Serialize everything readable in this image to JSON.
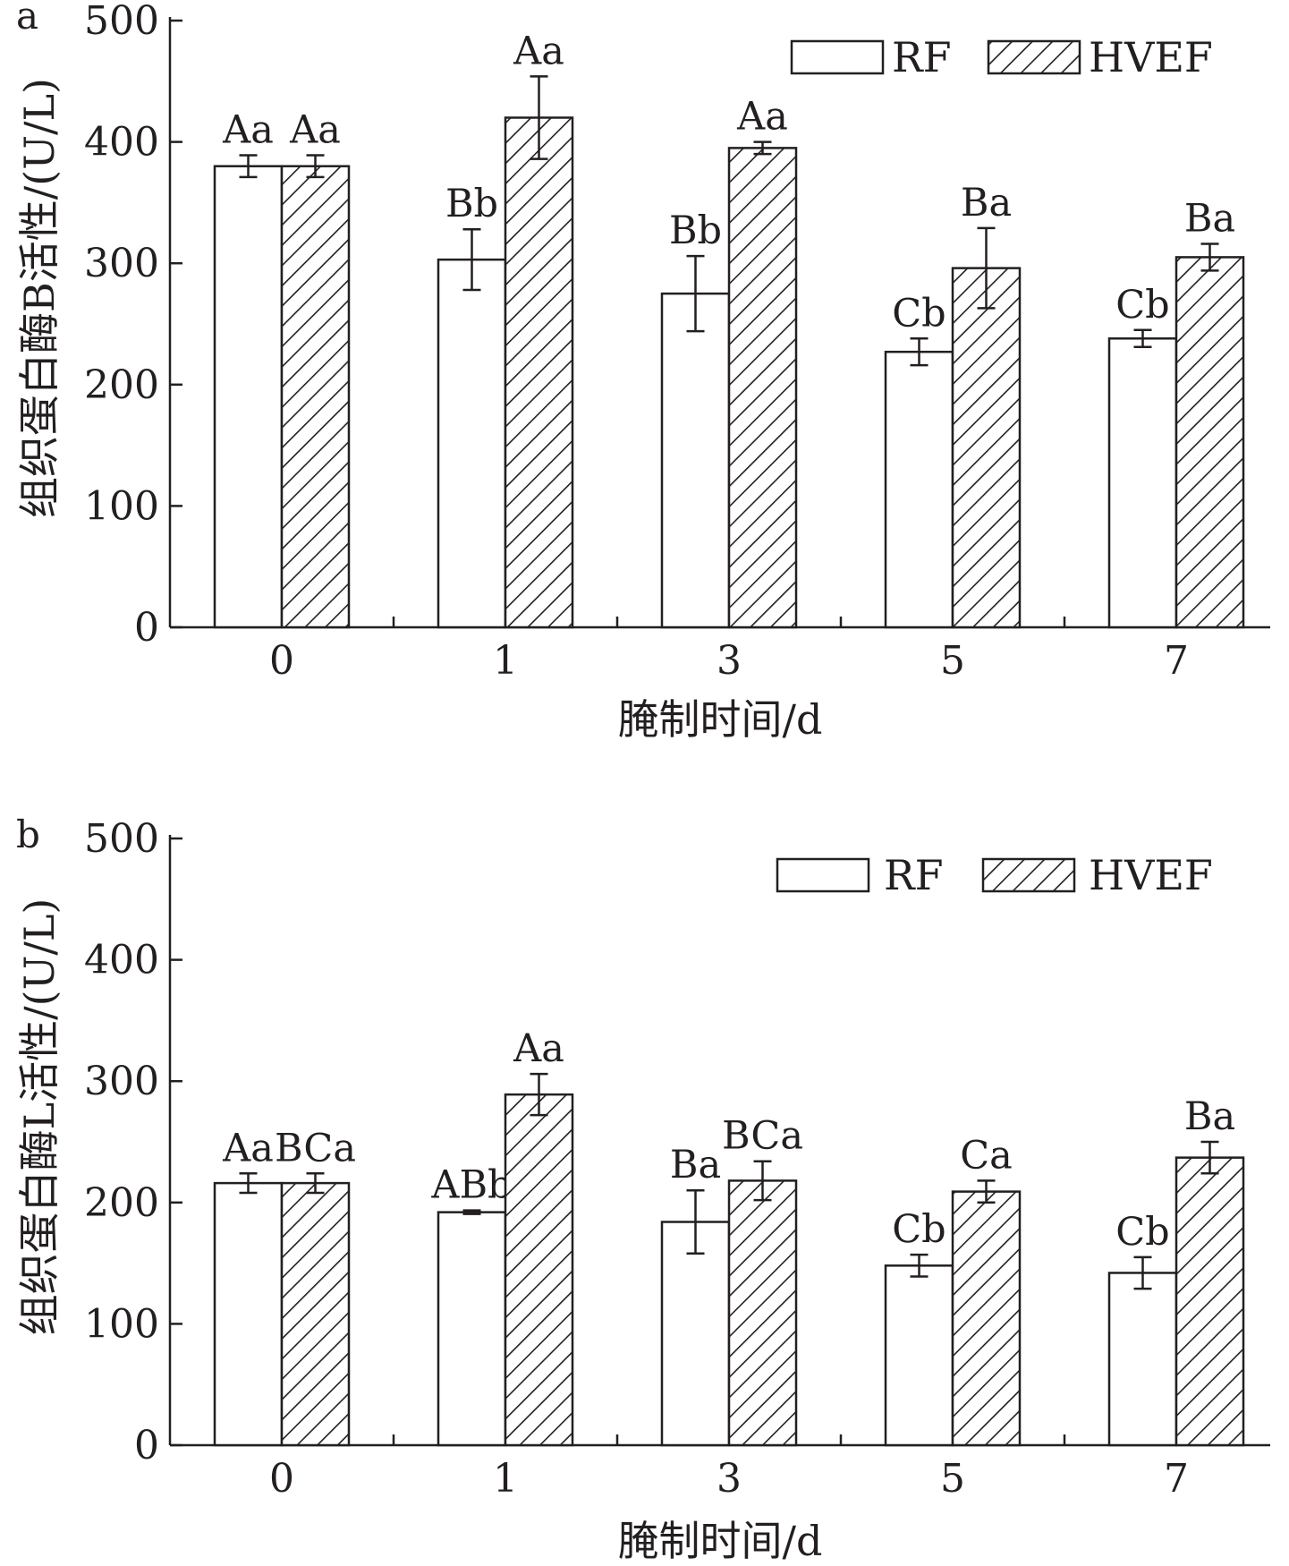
{
  "chart_data": [
    {
      "type": "bar",
      "panel_label": "a",
      "ylabel": "组织蛋白酶B活性/(U/L)",
      "xlabel": "腌制时间/d",
      "categories": [
        "0",
        "1",
        "3",
        "5",
        "7"
      ],
      "ylim": [
        0,
        500
      ],
      "yticks": [
        "0",
        "100",
        "200",
        "300",
        "400",
        "500"
      ],
      "legend_position": "top-right",
      "series": [
        {
          "name": "RF",
          "pattern": "open",
          "values": [
            380,
            303,
            275,
            227,
            238
          ],
          "errors": [
            9,
            25,
            31,
            11,
            7
          ],
          "labels": [
            "Aa",
            "Bb",
            "Bb",
            "Cb",
            "Cb"
          ]
        },
        {
          "name": "HVEF",
          "pattern": "hatched",
          "values": [
            380,
            420,
            395,
            296,
            305
          ],
          "errors": [
            9,
            34,
            5,
            33,
            11
          ],
          "labels": [
            "Aa",
            "Aa",
            "Aa",
            "Ba",
            "Ba"
          ]
        }
      ]
    },
    {
      "type": "bar",
      "panel_label": "b",
      "ylabel": "组织蛋白酶L活性/(U/L)",
      "xlabel": "腌制时间/d",
      "categories": [
        "0",
        "1",
        "3",
        "5",
        "7"
      ],
      "ylim": [
        0,
        500
      ],
      "yticks": [
        "0",
        "100",
        "200",
        "300",
        "400",
        "500"
      ],
      "legend_position": "top-right",
      "series": [
        {
          "name": "RF",
          "pattern": "open",
          "values": [
            216,
            192,
            184,
            148,
            142
          ],
          "errors": [
            8,
            1.5,
            26,
            9,
            13
          ],
          "labels": [
            "Aa",
            "ABb",
            "Ba",
            "Cb",
            "Cb"
          ]
        },
        {
          "name": "HVEF",
          "pattern": "hatched",
          "values": [
            216,
            289,
            218,
            209,
            237
          ],
          "errors": [
            8,
            17,
            16,
            9,
            13
          ],
          "labels": [
            "BCa",
            "Aa",
            "BCa",
            "Ca",
            "Ba"
          ]
        }
      ]
    }
  ],
  "colors": {
    "ink": "#231f20",
    "background": "#ffffff"
  }
}
